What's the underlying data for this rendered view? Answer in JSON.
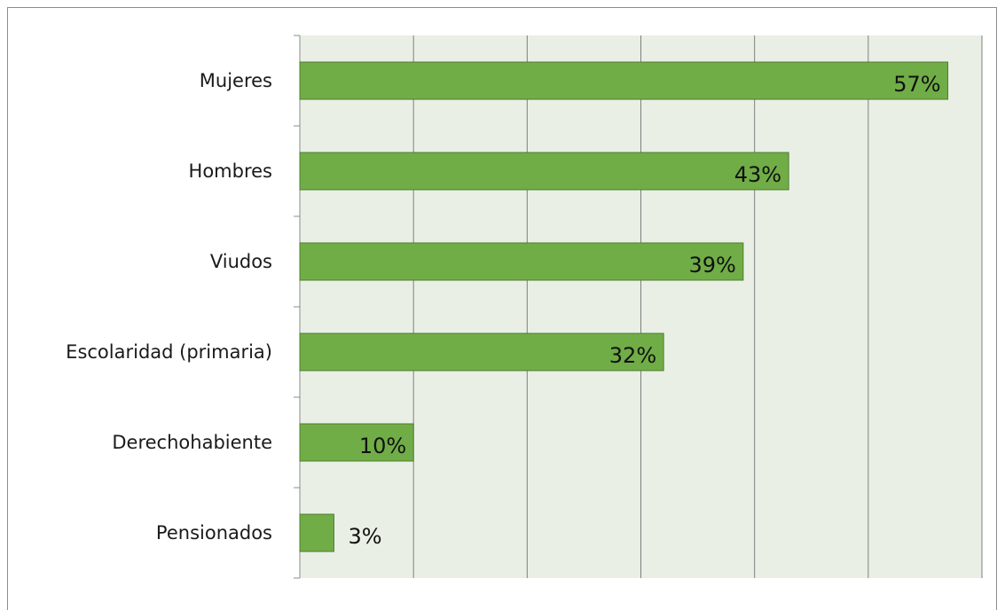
{
  "chart_data": {
    "type": "bar",
    "orientation": "horizontal",
    "categories": [
      "Mujeres",
      "Hombres",
      "Viudos",
      "Escolaridad (primaria)",
      "Derechohabiente",
      "Pensionados"
    ],
    "values": [
      57,
      43,
      39,
      32,
      10,
      3
    ],
    "data_labels": [
      "57%",
      "43%",
      "39%",
      "32%",
      "10%",
      "3%"
    ],
    "title": "",
    "xlabel": "",
    "ylabel": "",
    "xlim": [
      0,
      60
    ],
    "grid": true,
    "legend": "none",
    "colors": {
      "bar": "#70ad47",
      "bar_border": "#4e7d2f",
      "plot_background": "#eaefe6",
      "gridline": "#7f7f7f"
    }
  }
}
